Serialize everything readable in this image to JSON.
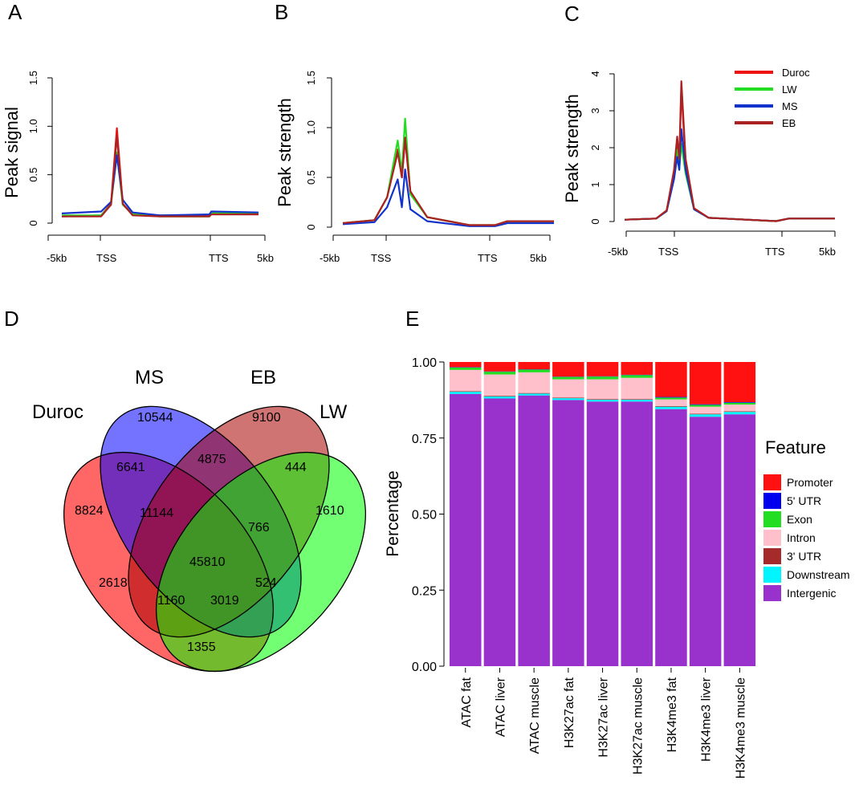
{
  "chart_data": [
    {
      "id": "A",
      "type": "line",
      "panel_label": "A",
      "ylabel": "Peak signal",
      "x_ticks": [
        "-5kb",
        "TSS",
        "TTS",
        "5kb"
      ],
      "ylim": [
        0,
        1.5
      ],
      "y_ticks": [
        "0",
        "0.5",
        "1.0",
        "1.5"
      ],
      "y_tick_values": [
        0,
        0.5,
        1.0,
        1.5
      ],
      "series": [
        {
          "name": "Duroc",
          "color": "#ee1111",
          "points": [
            [
              0,
              0.07
            ],
            [
              0.2,
              0.08
            ],
            [
              0.25,
              0.2
            ],
            [
              0.28,
              0.98
            ],
            [
              0.31,
              0.2
            ],
            [
              0.36,
              0.09
            ],
            [
              0.5,
              0.08
            ],
            [
              0.75,
              0.08
            ],
            [
              0.76,
              0.1
            ],
            [
              1,
              0.1
            ]
          ]
        },
        {
          "name": "LW",
          "color": "#22dd22",
          "points": [
            [
              0,
              0.08
            ],
            [
              0.2,
              0.08
            ],
            [
              0.25,
              0.19
            ],
            [
              0.28,
              0.73
            ],
            [
              0.31,
              0.19
            ],
            [
              0.36,
              0.09
            ],
            [
              0.5,
              0.07
            ],
            [
              0.75,
              0.07
            ],
            [
              0.76,
              0.1
            ],
            [
              1,
              0.1
            ]
          ]
        },
        {
          "name": "MS",
          "color": "#1133cc",
          "points": [
            [
              0,
              0.1
            ],
            [
              0.2,
              0.12
            ],
            [
              0.25,
              0.22
            ],
            [
              0.28,
              0.7
            ],
            [
              0.31,
              0.24
            ],
            [
              0.36,
              0.11
            ],
            [
              0.5,
              0.08
            ],
            [
              0.75,
              0.09
            ],
            [
              0.76,
              0.12
            ],
            [
              1,
              0.11
            ]
          ]
        },
        {
          "name": "EB",
          "color": "#aa2222",
          "points": [
            [
              0,
              0.07
            ],
            [
              0.2,
              0.07
            ],
            [
              0.25,
              0.19
            ],
            [
              0.28,
              0.9
            ],
            [
              0.31,
              0.2
            ],
            [
              0.36,
              0.08
            ],
            [
              0.5,
              0.07
            ],
            [
              0.75,
              0.07
            ],
            [
              0.76,
              0.09
            ],
            [
              1,
              0.09
            ]
          ]
        }
      ]
    },
    {
      "id": "B",
      "type": "line",
      "panel_label": "B",
      "ylabel": "Peak strength",
      "x_ticks": [
        "-5kb",
        "TSS",
        "TTS",
        "5kb"
      ],
      "ylim": [
        0,
        1.5
      ],
      "y_ticks": [
        "0",
        "0.5",
        "1.0",
        "1.5"
      ],
      "y_tick_values": [
        0,
        0.5,
        1.0,
        1.5
      ],
      "series": [
        {
          "name": "Duroc",
          "color": "#ee1111",
          "points": [
            [
              0,
              0.04
            ],
            [
              0.15,
              0.07
            ],
            [
              0.21,
              0.3
            ],
            [
              0.26,
              0.78
            ],
            [
              0.28,
              0.5
            ],
            [
              0.295,
              0.88
            ],
            [
              0.32,
              0.35
            ],
            [
              0.4,
              0.1
            ],
            [
              0.6,
              0.02
            ],
            [
              0.72,
              0.02
            ],
            [
              0.78,
              0.06
            ],
            [
              1,
              0.06
            ]
          ]
        },
        {
          "name": "LW",
          "color": "#22dd22",
          "points": [
            [
              0,
              0.04
            ],
            [
              0.15,
              0.07
            ],
            [
              0.21,
              0.3
            ],
            [
              0.26,
              0.87
            ],
            [
              0.28,
              0.55
            ],
            [
              0.295,
              1.09
            ],
            [
              0.32,
              0.33
            ],
            [
              0.4,
              0.1
            ],
            [
              0.6,
              0.02
            ],
            [
              0.72,
              0.02
            ],
            [
              0.78,
              0.06
            ],
            [
              1,
              0.06
            ]
          ]
        },
        {
          "name": "MS",
          "color": "#1133cc",
          "points": [
            [
              0,
              0.03
            ],
            [
              0.15,
              0.05
            ],
            [
              0.21,
              0.2
            ],
            [
              0.26,
              0.48
            ],
            [
              0.28,
              0.2
            ],
            [
              0.295,
              0.58
            ],
            [
              0.32,
              0.18
            ],
            [
              0.4,
              0.06
            ],
            [
              0.6,
              0.01
            ],
            [
              0.72,
              0.01
            ],
            [
              0.78,
              0.04
            ],
            [
              1,
              0.04
            ]
          ]
        },
        {
          "name": "EB",
          "color": "#aa2222",
          "points": [
            [
              0,
              0.04
            ],
            [
              0.15,
              0.07
            ],
            [
              0.21,
              0.3
            ],
            [
              0.26,
              0.75
            ],
            [
              0.28,
              0.5
            ],
            [
              0.295,
              0.9
            ],
            [
              0.32,
              0.36
            ],
            [
              0.4,
              0.1
            ],
            [
              0.6,
              0.02
            ],
            [
              0.72,
              0.02
            ],
            [
              0.78,
              0.06
            ],
            [
              1,
              0.06
            ]
          ]
        }
      ]
    },
    {
      "id": "C",
      "type": "line",
      "panel_label": "C",
      "ylabel": "Peak strength",
      "x_ticks": [
        "-5kb",
        "TSS",
        "TTS",
        "5kb"
      ],
      "ylim": [
        0,
        4
      ],
      "y_ticks": [
        "0",
        "1",
        "2",
        "3",
        "4"
      ],
      "y_tick_values": [
        0,
        1,
        2,
        3,
        4
      ],
      "legend": {
        "placement": "top-right",
        "entries": [
          "Duroc",
          "LW",
          "MS",
          "EB"
        ]
      },
      "series": [
        {
          "name": "Duroc",
          "color": "#ee1111",
          "points": [
            [
              0,
              0.05
            ],
            [
              0.15,
              0.08
            ],
            [
              0.2,
              0.3
            ],
            [
              0.235,
              1.3
            ],
            [
              0.25,
              2.2
            ],
            [
              0.26,
              1.6
            ],
            [
              0.27,
              3.6
            ],
            [
              0.29,
              1.6
            ],
            [
              0.33,
              0.35
            ],
            [
              0.4,
              0.1
            ],
            [
              0.72,
              0.01
            ],
            [
              0.78,
              0.08
            ],
            [
              1,
              0.08
            ]
          ]
        },
        {
          "name": "LW",
          "color": "#22dd22",
          "points": [
            [
              0,
              0.05
            ],
            [
              0.15,
              0.08
            ],
            [
              0.2,
              0.28
            ],
            [
              0.235,
              1.2
            ],
            [
              0.25,
              1.95
            ],
            [
              0.26,
              1.4
            ],
            [
              0.27,
              2.1
            ],
            [
              0.29,
              1.3
            ],
            [
              0.33,
              0.33
            ],
            [
              0.4,
              0.1
            ],
            [
              0.72,
              0.01
            ],
            [
              0.78,
              0.08
            ],
            [
              1,
              0.08
            ]
          ]
        },
        {
          "name": "MS",
          "color": "#1133cc",
          "points": [
            [
              0,
              0.05
            ],
            [
              0.15,
              0.08
            ],
            [
              0.2,
              0.28
            ],
            [
              0.235,
              1.15
            ],
            [
              0.25,
              1.75
            ],
            [
              0.26,
              1.4
            ],
            [
              0.27,
              2.5
            ],
            [
              0.29,
              1.4
            ],
            [
              0.33,
              0.33
            ],
            [
              0.4,
              0.1
            ],
            [
              0.72,
              0.01
            ],
            [
              0.78,
              0.08
            ],
            [
              1,
              0.08
            ]
          ]
        },
        {
          "name": "EB",
          "color": "#aa2222",
          "points": [
            [
              0,
              0.05
            ],
            [
              0.15,
              0.08
            ],
            [
              0.2,
              0.3
            ],
            [
              0.235,
              1.4
            ],
            [
              0.25,
              2.3
            ],
            [
              0.26,
              1.7
            ],
            [
              0.27,
              3.8
            ],
            [
              0.29,
              1.7
            ],
            [
              0.33,
              0.36
            ],
            [
              0.4,
              0.1
            ],
            [
              0.72,
              0.01
            ],
            [
              0.78,
              0.08
            ],
            [
              1,
              0.08
            ]
          ]
        }
      ]
    },
    {
      "id": "D",
      "type": "venn",
      "panel_label": "D",
      "sets": [
        "Duroc",
        "MS",
        "EB",
        "LW"
      ],
      "regions": {
        "duroc_only": "8824",
        "ms_only": "10544",
        "eb_only": "9100",
        "lw_only": "1610",
        "duroc_ms": "6641",
        "ms_eb": "4875",
        "eb_lw": "444",
        "duroc_ms_eb": "11144",
        "ms_eb_lw": "766",
        "all": "45810",
        "duroc_eb": "2618",
        "ms_lw": "524",
        "duroc_eb_lw": "1160",
        "duroc_ms_lw": "3019",
        "duroc_lw": "1355"
      }
    },
    {
      "id": "E",
      "type": "stacked_bar",
      "panel_label": "E",
      "ylabel": "Percentage",
      "ylim": [
        0,
        1
      ],
      "y_ticks": [
        "0.00",
        "0.25",
        "0.50",
        "0.75",
        "1.00"
      ],
      "y_tick_values": [
        0,
        0.25,
        0.5,
        0.75,
        1.0
      ],
      "categories": [
        "ATAC fat",
        "ATAC liver",
        "ATAC muscle",
        "H3K27ac fat",
        "H3K27ac liver",
        "H3K27ac muscle",
        "H3K4me3 fat",
        "H3K4me3 liver",
        "H3K4me3 muscle"
      ],
      "legend_title": "Feature",
      "series": [
        {
          "name": "Intergenic",
          "color": "#9932cc",
          "values": [
            0.895,
            0.88,
            0.89,
            0.875,
            0.87,
            0.87,
            0.845,
            0.82,
            0.828
          ]
        },
        {
          "name": "Downstream",
          "color": "#00f5ff",
          "values": [
            0.007,
            0.007,
            0.006,
            0.006,
            0.006,
            0.006,
            0.008,
            0.008,
            0.008
          ]
        },
        {
          "name": "3' UTR",
          "color": "#a52a2a",
          "values": [
            0.002,
            0.002,
            0.002,
            0.002,
            0.002,
            0.002,
            0.002,
            0.002,
            0.002
          ]
        },
        {
          "name": "Intron",
          "color": "#ffc0cb",
          "values": [
            0.07,
            0.07,
            0.068,
            0.06,
            0.065,
            0.07,
            0.022,
            0.023,
            0.022
          ]
        },
        {
          "name": "Exon",
          "color": "#22dd22",
          "values": [
            0.008,
            0.009,
            0.009,
            0.008,
            0.009,
            0.009,
            0.006,
            0.006,
            0.006
          ]
        },
        {
          "name": "5' UTR",
          "color": "#0000ee",
          "values": [
            0.001,
            0.001,
            0.001,
            0.001,
            0.001,
            0.001,
            0.002,
            0.002,
            0.002
          ]
        },
        {
          "name": "Promoter",
          "color": "#ff1111",
          "values": [
            0.017,
            0.031,
            0.024,
            0.048,
            0.047,
            0.042,
            0.115,
            0.139,
            0.132
          ]
        }
      ],
      "legend_order": [
        "Promoter",
        "5' UTR",
        "Exon",
        "Intron",
        "3' UTR",
        "Downstream",
        "Intergenic"
      ]
    }
  ]
}
